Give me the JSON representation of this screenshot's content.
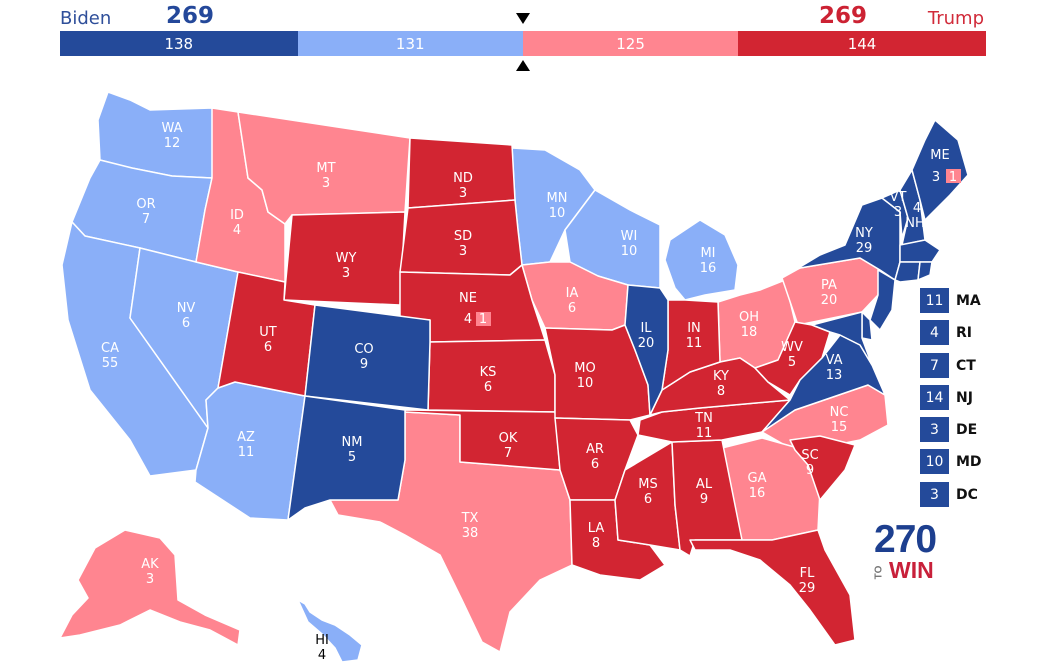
{
  "header": {
    "biden_name": "Biden",
    "biden_total": "269",
    "trump_name": "Trump",
    "trump_total": "269",
    "segments": [
      {
        "value": "138",
        "votes": 138,
        "color": "#244a9a"
      },
      {
        "value": "131",
        "votes": 131,
        "color": "#8aaff8"
      },
      {
        "value": "125",
        "votes": 125,
        "color": "#ff8590"
      },
      {
        "value": "144",
        "votes": 144,
        "color": "#d22532"
      }
    ]
  },
  "colors": {
    "safe_dem": "#244a9a",
    "likely_dem": "#8aaff8",
    "likely_rep": "#ff8590",
    "safe_rep": "#d22532"
  },
  "states": {
    "WA": {
      "abbr": "WA",
      "votes": "12"
    },
    "OR": {
      "abbr": "OR",
      "votes": "7"
    },
    "CA": {
      "abbr": "CA",
      "votes": "55"
    },
    "NV": {
      "abbr": "NV",
      "votes": "6"
    },
    "ID": {
      "abbr": "ID",
      "votes": "4"
    },
    "MT": {
      "abbr": "MT",
      "votes": "3"
    },
    "WY": {
      "abbr": "WY",
      "votes": "3"
    },
    "UT": {
      "abbr": "UT",
      "votes": "6"
    },
    "AZ": {
      "abbr": "AZ",
      "votes": "11"
    },
    "CO": {
      "abbr": "CO",
      "votes": "9"
    },
    "NM": {
      "abbr": "NM",
      "votes": "5"
    },
    "ND": {
      "abbr": "ND",
      "votes": "3"
    },
    "SD": {
      "abbr": "SD",
      "votes": "3"
    },
    "NE": {
      "abbr": "NE",
      "votes": "4",
      "district": "1"
    },
    "KS": {
      "abbr": "KS",
      "votes": "6"
    },
    "OK": {
      "abbr": "OK",
      "votes": "7"
    },
    "TX": {
      "abbr": "TX",
      "votes": "38"
    },
    "MN": {
      "abbr": "MN",
      "votes": "10"
    },
    "IA": {
      "abbr": "IA",
      "votes": "6"
    },
    "MO": {
      "abbr": "MO",
      "votes": "10"
    },
    "AR": {
      "abbr": "AR",
      "votes": "6"
    },
    "LA": {
      "abbr": "LA",
      "votes": "8"
    },
    "WI": {
      "abbr": "WI",
      "votes": "10"
    },
    "IL": {
      "abbr": "IL",
      "votes": "20"
    },
    "MI": {
      "abbr": "MI",
      "votes": "16"
    },
    "IN": {
      "abbr": "IN",
      "votes": "11"
    },
    "OH": {
      "abbr": "OH",
      "votes": "18"
    },
    "KY": {
      "abbr": "KY",
      "votes": "8"
    },
    "TN": {
      "abbr": "TN",
      "votes": "11"
    },
    "MS": {
      "abbr": "MS",
      "votes": "6"
    },
    "AL": {
      "abbr": "AL",
      "votes": "9"
    },
    "GA": {
      "abbr": "GA",
      "votes": "16"
    },
    "FL": {
      "abbr": "FL",
      "votes": "29"
    },
    "SC": {
      "abbr": "SC",
      "votes": "9"
    },
    "NC": {
      "abbr": "NC",
      "votes": "15"
    },
    "VA": {
      "abbr": "VA",
      "votes": "13"
    },
    "WV": {
      "abbr": "WV",
      "votes": "5"
    },
    "PA": {
      "abbr": "PA",
      "votes": "20"
    },
    "NY": {
      "abbr": "NY",
      "votes": "29"
    },
    "VT": {
      "abbr": "VT",
      "votes": "3"
    },
    "NH": {
      "abbr": "NH",
      "votes": "4"
    },
    "ME": {
      "abbr": "ME",
      "votes": "3",
      "district": "1"
    },
    "AK": {
      "abbr": "AK",
      "votes": "3"
    },
    "HI": {
      "abbr": "HI",
      "votes": "4"
    }
  },
  "small_states": [
    {
      "abbr": "MA",
      "votes": "11"
    },
    {
      "abbr": "RI",
      "votes": "4"
    },
    {
      "abbr": "CT",
      "votes": "7"
    },
    {
      "abbr": "NJ",
      "votes": "14"
    },
    {
      "abbr": "DE",
      "votes": "3"
    },
    {
      "abbr": "MD",
      "votes": "10"
    },
    {
      "abbr": "DC",
      "votes": "3"
    }
  ],
  "logo": {
    "number": "270",
    "to": "TO",
    "win": "WIN"
  }
}
